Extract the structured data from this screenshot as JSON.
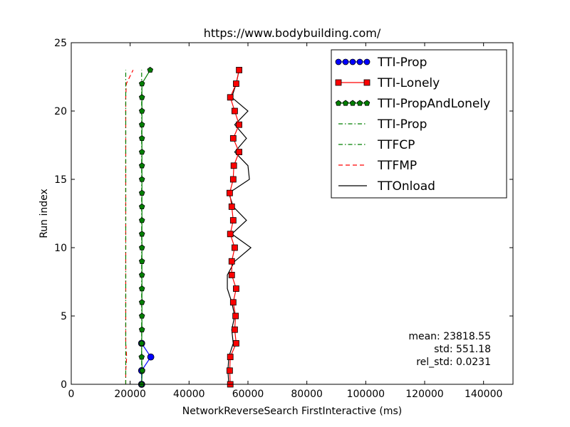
{
  "chart_data": {
    "type": "line",
    "title": "https://www.bodybuilding.com/",
    "xlabel": "NetworkReverseSearch FirstInteractive (ms)",
    "ylabel": "Run index",
    "xlim": [
      0,
      150000
    ],
    "ylim": [
      0,
      25
    ],
    "xticks": [
      0,
      20000,
      40000,
      60000,
      80000,
      100000,
      120000,
      140000
    ],
    "yticks": [
      0,
      5,
      10,
      15,
      20,
      25
    ],
    "grid": false,
    "legend_position": "upper right",
    "series": [
      {
        "name": "TTI-Prop",
        "style": "marker-line",
        "marker": "circle",
        "color": "#0000ff",
        "points": [
          [
            23900,
            0
          ],
          [
            23900,
            1
          ],
          [
            27000,
            2
          ],
          [
            23900,
            3
          ]
        ]
      },
      {
        "name": "TTI-Lonely",
        "style": "marker-line",
        "marker": "square",
        "color": "#ff0000",
        "points": [
          [
            54000,
            0
          ],
          [
            53800,
            1
          ],
          [
            54000,
            2
          ],
          [
            56000,
            3
          ],
          [
            55500,
            4
          ],
          [
            55800,
            5
          ],
          [
            55000,
            6
          ],
          [
            56000,
            7
          ],
          [
            54500,
            8
          ],
          [
            54500,
            9
          ],
          [
            55500,
            10
          ],
          [
            54000,
            11
          ],
          [
            55000,
            12
          ],
          [
            54500,
            13
          ],
          [
            53800,
            14
          ],
          [
            55000,
            15
          ],
          [
            55200,
            16
          ],
          [
            57000,
            17
          ],
          [
            55000,
            18
          ],
          [
            57000,
            19
          ],
          [
            55500,
            20
          ],
          [
            54000,
            21
          ],
          [
            56000,
            22
          ],
          [
            57000,
            23
          ]
        ]
      },
      {
        "name": "TTI-PropAndLonely",
        "style": "marker-line",
        "marker": "pentagon",
        "color": "#007f00",
        "points": [
          [
            23900,
            0
          ],
          [
            24100,
            1
          ],
          [
            23900,
            2
          ],
          [
            23900,
            3
          ],
          [
            24000,
            4
          ],
          [
            24000,
            5
          ],
          [
            24000,
            6
          ],
          [
            24000,
            7
          ],
          [
            24000,
            8
          ],
          [
            24000,
            9
          ],
          [
            24000,
            10
          ],
          [
            24000,
            11
          ],
          [
            24000,
            12
          ],
          [
            24000,
            13
          ],
          [
            24000,
            14
          ],
          [
            24000,
            15
          ],
          [
            24000,
            16
          ],
          [
            24000,
            17
          ],
          [
            24000,
            18
          ],
          [
            24000,
            19
          ],
          [
            24000,
            20
          ],
          [
            24000,
            21
          ],
          [
            24000,
            22
          ],
          [
            26800,
            23
          ]
        ]
      },
      {
        "name": "TTI-Prop",
        "style": "dashdot",
        "color": "#007f00",
        "points": [
          [
            23900,
            0
          ],
          [
            23900,
            23
          ]
        ]
      },
      {
        "name": "TTFCP",
        "style": "dashdot",
        "color": "#007f00",
        "points": [
          [
            18500,
            0
          ],
          [
            18500,
            23
          ]
        ]
      },
      {
        "name": "TTFMP",
        "style": "dashed",
        "color": "#ff0000",
        "points": [
          [
            18500,
            0
          ],
          [
            18500,
            1
          ],
          [
            18800,
            2
          ],
          [
            18500,
            3
          ],
          [
            18500,
            4
          ],
          [
            18500,
            5
          ],
          [
            18500,
            6
          ],
          [
            18500,
            7
          ],
          [
            18500,
            8
          ],
          [
            18500,
            9
          ],
          [
            18500,
            10
          ],
          [
            18500,
            11
          ],
          [
            18500,
            12
          ],
          [
            18500,
            13
          ],
          [
            18500,
            14
          ],
          [
            18500,
            15
          ],
          [
            18500,
            16
          ],
          [
            18500,
            17
          ],
          [
            18500,
            18
          ],
          [
            18500,
            19
          ],
          [
            18500,
            20
          ],
          [
            18500,
            21
          ],
          [
            18700,
            22
          ],
          [
            21000,
            23
          ]
        ]
      },
      {
        "name": "TTOnload",
        "style": "solid",
        "color": "#000000",
        "points": [
          [
            53500,
            0
          ],
          [
            53200,
            1
          ],
          [
            53500,
            2
          ],
          [
            55000,
            3
          ],
          [
            54500,
            4
          ],
          [
            55500,
            5
          ],
          [
            54500,
            6
          ],
          [
            53000,
            7
          ],
          [
            53000,
            8
          ],
          [
            55500,
            9
          ],
          [
            61000,
            10
          ],
          [
            54500,
            11
          ],
          [
            59500,
            12
          ],
          [
            55000,
            13
          ],
          [
            53500,
            14
          ],
          [
            60500,
            15
          ],
          [
            60000,
            16
          ],
          [
            55500,
            17
          ],
          [
            59500,
            18
          ],
          [
            55500,
            19
          ],
          [
            60000,
            20
          ],
          [
            54500,
            21
          ],
          [
            56000,
            22
          ],
          [
            57000,
            23
          ]
        ]
      }
    ],
    "annotations": [
      "mean: 23818.55",
      "std: 551.18",
      "rel_std: 0.0231"
    ]
  }
}
